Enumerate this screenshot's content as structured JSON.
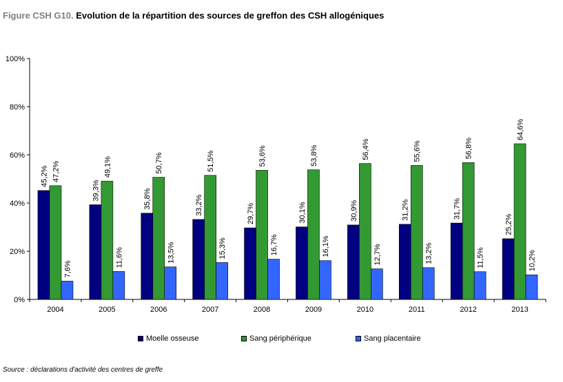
{
  "header": {
    "prefix": "Figure CSH G10.",
    "title": "Evolution de la répartition des sources de greffon des CSH allogéniques"
  },
  "source": "Source : déclarations d'activité des centres de greffe",
  "chart_data": {
    "type": "bar",
    "categories": [
      "2004",
      "2005",
      "2006",
      "2007",
      "2008",
      "2009",
      "2010",
      "2011",
      "2012",
      "2013"
    ],
    "series": [
      {
        "name": "Moelle osseuse",
        "color": "#000080",
        "values": [
          45.2,
          39.3,
          35.8,
          33.2,
          29.7,
          30.1,
          30.9,
          31.2,
          31.7,
          25.2
        ],
        "labels": [
          "45,2%",
          "39,3%",
          "35,8%",
          "33,2%",
          "29,7%",
          "30,1%",
          "30,9%",
          "31,2%",
          "31,7%",
          "25,2%"
        ]
      },
      {
        "name": "Sang périphérique",
        "color": "#339933",
        "values": [
          47.2,
          49.1,
          50.7,
          51.5,
          53.6,
          53.8,
          56.4,
          55.6,
          56.8,
          64.6
        ],
        "labels": [
          "47,2%",
          "49,1%",
          "50,7%",
          "51,5%",
          "53,6%",
          "53,8%",
          "56,4%",
          "55,6%",
          "56,8%",
          "64,6%"
        ]
      },
      {
        "name": "Sang placentaire",
        "color": "#3366ff",
        "values": [
          7.6,
          11.6,
          13.5,
          15.3,
          16.7,
          16.1,
          12.7,
          13.2,
          11.5,
          10.2
        ],
        "labels": [
          "7,6%",
          "11,6%",
          "13,5%",
          "15,3%",
          "16,7%",
          "16,1%",
          "12,7%",
          "13,2%",
          "11,5%",
          "10,2%"
        ]
      }
    ],
    "yticks": [
      "0%",
      "20%",
      "40%",
      "60%",
      "80%",
      "100%"
    ],
    "ylim": [
      0,
      100
    ],
    "legend_position": "bottom",
    "grid": false
  }
}
